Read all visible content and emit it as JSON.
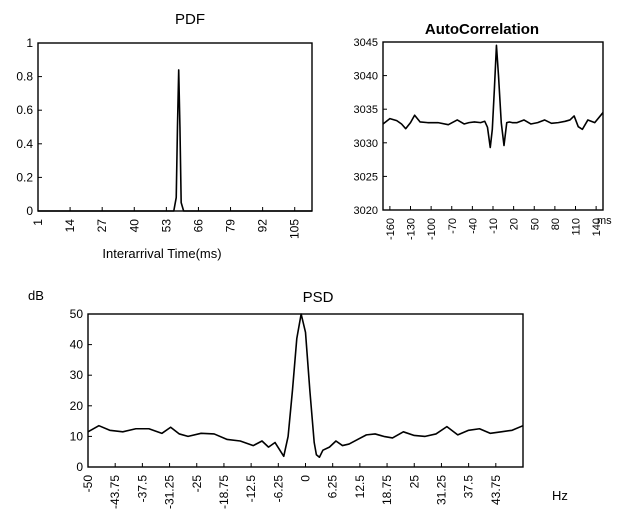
{
  "chart_data": [
    {
      "id": "pdf",
      "type": "line",
      "title": "PDF",
      "xlabel": "Interarrival Time(ms)",
      "ylabel": "",
      "xlim": [
        1,
        112
      ],
      "ylim": [
        0,
        1
      ],
      "xticks": [
        "1",
        "14",
        "27",
        "40",
        "53",
        "66",
        "79",
        "92",
        "105"
      ],
      "yticks": [
        "0",
        "0.2",
        "0.4",
        "0.6",
        "0.8",
        "1"
      ],
      "grid": false,
      "series": [
        {
          "x": [
            1,
            10,
            20,
            30,
            40,
            50,
            56,
            57,
            57.5,
            58,
            58.5,
            59,
            60,
            70,
            80,
            90,
            100,
            112
          ],
          "y": [
            0,
            0,
            0,
            0,
            0,
            0,
            0,
            0.08,
            0.5,
            0.84,
            0.5,
            0.05,
            0,
            0,
            0,
            0,
            0,
            0
          ]
        }
      ]
    },
    {
      "id": "autocorrelation",
      "type": "line",
      "title": "AutoCorrelation",
      "xlabel": "ms",
      "ylabel": "",
      "xlim": [
        -170,
        150
      ],
      "ylim": [
        3020,
        3045
      ],
      "xticks": [
        "-160",
        "-130",
        "-100",
        "-70",
        "-40",
        "-10",
        "20",
        "50",
        "80",
        "110",
        "140"
      ],
      "yticks": [
        "3020",
        "3025",
        "3030",
        "3035",
        "3040",
        "3045"
      ],
      "grid": false,
      "series": [
        {
          "x": [
            -170,
            -160,
            -150,
            -143,
            -137,
            -130,
            -124,
            -116,
            -105,
            -90,
            -75,
            -62,
            -52,
            -45,
            -37,
            -28,
            -22,
            -18,
            -14,
            -11,
            -8,
            -5,
            -2,
            2,
            6,
            10,
            14,
            18,
            25,
            35,
            45,
            55,
            65,
            75,
            85,
            95,
            102,
            108,
            114,
            120,
            128,
            138,
            150
          ],
          "y": [
            3032.8,
            3033.6,
            3033.3,
            3032.8,
            3032.1,
            3033.0,
            3034.1,
            3033.1,
            3033.0,
            3033.0,
            3032.7,
            3033.4,
            3032.8,
            3033.0,
            3033.1,
            3033.0,
            3033.2,
            3032.3,
            3029.3,
            3032.0,
            3038.0,
            3044.5,
            3040.0,
            3033.0,
            3029.6,
            3033.0,
            3033.1,
            3033.0,
            3033.0,
            3033.4,
            3032.8,
            3033.0,
            3033.4,
            3032.9,
            3033.0,
            3033.2,
            3033.4,
            3034.0,
            3032.4,
            3032.0,
            3033.4,
            3033.0,
            3034.5
          ]
        }
      ]
    },
    {
      "id": "psd",
      "type": "line",
      "title": "PSD",
      "xlabel": "Hz",
      "ylabel": "dB",
      "xlim": [
        -50,
        50
      ],
      "ylim": [
        0,
        50
      ],
      "xticks": [
        "-50",
        "-43.75",
        "-37.5",
        "-31.25",
        "-25",
        "-18.75",
        "-12.5",
        "-6.25",
        "0",
        "6.25",
        "12.5",
        "18.75",
        "25",
        "31.25",
        "37.5",
        "43.75"
      ],
      "yticks": [
        "0",
        "10",
        "20",
        "30",
        "40",
        "50"
      ],
      "grid": false,
      "series": [
        {
          "x": [
            -50,
            -47.5,
            -45,
            -42,
            -39,
            -36,
            -33,
            -31,
            -29,
            -27,
            -24,
            -21,
            -18,
            -15,
            -12,
            -10,
            -8.5,
            -7,
            -5,
            -4,
            -3,
            -2,
            -1,
            0,
            1,
            2,
            2.5,
            3.2,
            4,
            5.5,
            7,
            8.5,
            10,
            12,
            14,
            16,
            18,
            20,
            22.5,
            25,
            27.5,
            30,
            32.5,
            35,
            37.5,
            40,
            42.5,
            45,
            47.5,
            50
          ],
          "y": [
            11.5,
            13.5,
            12.0,
            11.5,
            12.5,
            12.5,
            11.0,
            13.0,
            10.8,
            10.0,
            11.0,
            10.8,
            9.0,
            8.5,
            7.0,
            8.5,
            6.5,
            8.0,
            3.5,
            10.0,
            25.0,
            42.0,
            50.0,
            44.0,
            25.0,
            8.0,
            4.0,
            3.2,
            5.5,
            6.5,
            8.5,
            7.0,
            7.5,
            9.0,
            10.5,
            10.8,
            10.0,
            9.5,
            11.5,
            10.3,
            10.0,
            10.8,
            13.2,
            10.5,
            12.0,
            12.5,
            11.0,
            11.5,
            12.0,
            13.5
          ]
        }
      ]
    }
  ]
}
